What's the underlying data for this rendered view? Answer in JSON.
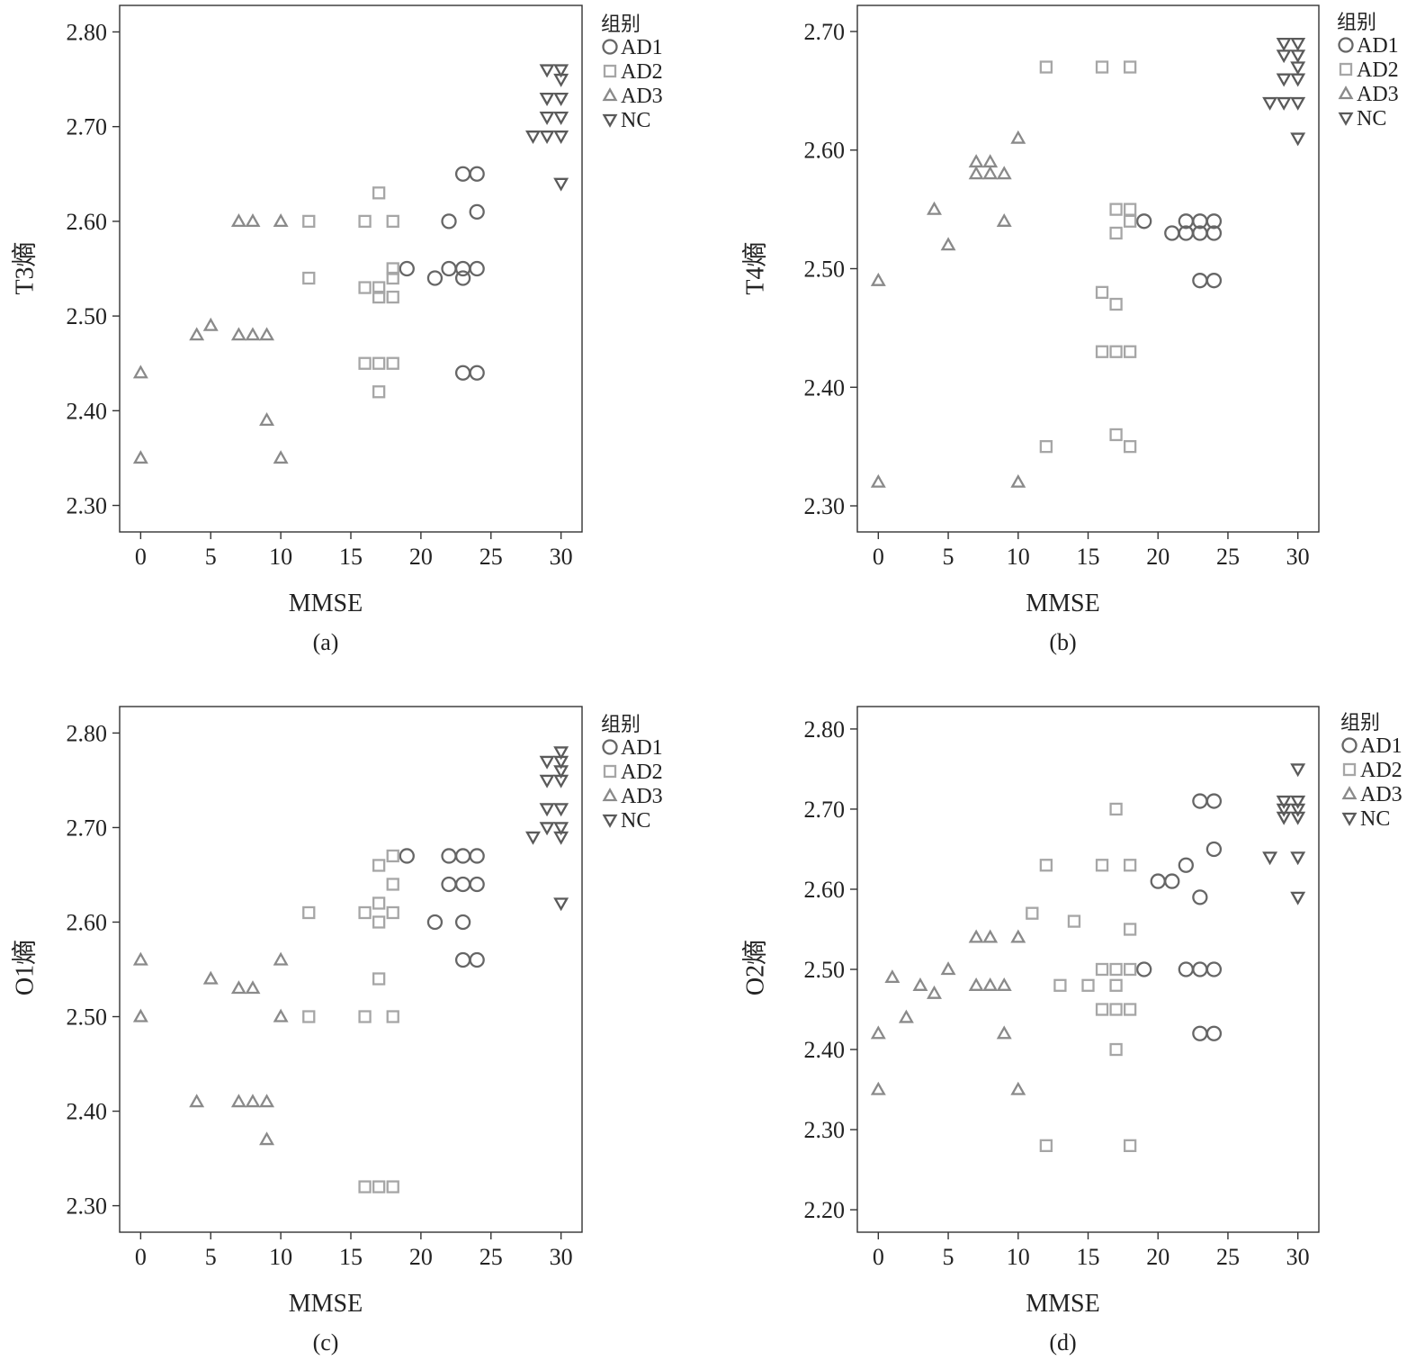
{
  "figure": {
    "legend_title": "组别",
    "groups": [
      {
        "key": "AD1",
        "label": "AD1",
        "symbol": "circle",
        "color": "#666666"
      },
      {
        "key": "AD2",
        "label": "AD2",
        "symbol": "square",
        "color": "#a6a6a6"
      },
      {
        "key": "AD3",
        "label": "AD3",
        "symbol": "triangle-up",
        "color": "#8a8a8a"
      },
      {
        "key": "NC",
        "label": "NC",
        "symbol": "triangle-down",
        "color": "#5a5a5a"
      }
    ]
  },
  "chart_data": [
    {
      "type": "scatter",
      "panel_label": "(a)",
      "xlabel": "MMSE",
      "ylabel": "T3熵",
      "xlim": [
        -1.5,
        31.5
      ],
      "ylim": [
        2.272,
        2.828
      ],
      "xticks": [
        "0",
        "5",
        "10",
        "15",
        "20",
        "25",
        "30"
      ],
      "yticks": [
        "2.30",
        "2.40",
        "2.50",
        "2.60",
        "2.70",
        "2.80"
      ],
      "grid": false,
      "legend_position": "top-right, outside plot",
      "series": [
        {
          "group": "AD1",
          "points": [
            [
              19,
              2.55
            ],
            [
              21,
              2.54
            ],
            [
              22,
              2.6
            ],
            [
              22,
              2.55
            ],
            [
              23,
              2.65
            ],
            [
              23,
              2.55
            ],
            [
              23,
              2.54
            ],
            [
              23,
              2.44
            ],
            [
              24,
              2.65
            ],
            [
              24,
              2.61
            ],
            [
              24,
              2.55
            ],
            [
              24,
              2.44
            ]
          ]
        },
        {
          "group": "AD2",
          "points": [
            [
              12,
              2.6
            ],
            [
              12,
              2.54
            ],
            [
              16,
              2.6
            ],
            [
              16,
              2.53
            ],
            [
              16,
              2.45
            ],
            [
              17,
              2.63
            ],
            [
              17,
              2.53
            ],
            [
              17,
              2.52
            ],
            [
              17,
              2.45
            ],
            [
              17,
              2.42
            ],
            [
              18,
              2.6
            ],
            [
              18,
              2.55
            ],
            [
              18,
              2.54
            ],
            [
              18,
              2.52
            ],
            [
              18,
              2.45
            ]
          ]
        },
        {
          "group": "AD3",
          "points": [
            [
              0,
              2.44
            ],
            [
              0,
              2.35
            ],
            [
              4,
              2.48
            ],
            [
              5,
              2.49
            ],
            [
              7,
              2.6
            ],
            [
              7,
              2.48
            ],
            [
              8,
              2.6
            ],
            [
              8,
              2.48
            ],
            [
              9,
              2.48
            ],
            [
              9,
              2.39
            ],
            [
              10,
              2.6
            ],
            [
              10,
              2.35
            ]
          ]
        },
        {
          "group": "NC",
          "points": [
            [
              28,
              2.69
            ],
            [
              29,
              2.76
            ],
            [
              29,
              2.73
            ],
            [
              29,
              2.71
            ],
            [
              29,
              2.69
            ],
            [
              30,
              2.76
            ],
            [
              30,
              2.75
            ],
            [
              30,
              2.73
            ],
            [
              30,
              2.71
            ],
            [
              30,
              2.69
            ],
            [
              30,
              2.64
            ]
          ]
        }
      ]
    },
    {
      "type": "scatter",
      "panel_label": "(b)",
      "xlabel": "MMSE",
      "ylabel": "T4熵",
      "xlim": [
        -1.5,
        31.5
      ],
      "ylim": [
        2.278,
        2.722
      ],
      "xticks": [
        "0",
        "5",
        "10",
        "15",
        "20",
        "25",
        "30"
      ],
      "yticks": [
        "2.30",
        "2.40",
        "2.50",
        "2.60",
        "2.70"
      ],
      "grid": false,
      "legend_position": "top-right, outside plot",
      "series": [
        {
          "group": "AD1",
          "points": [
            [
              19,
              2.54
            ],
            [
              21,
              2.53
            ],
            [
              22,
              2.54
            ],
            [
              22,
              2.53
            ],
            [
              23,
              2.54
            ],
            [
              23,
              2.53
            ],
            [
              23,
              2.49
            ],
            [
              24,
              2.54
            ],
            [
              24,
              2.53
            ],
            [
              24,
              2.49
            ]
          ]
        },
        {
          "group": "AD2",
          "points": [
            [
              12,
              2.67
            ],
            [
              12,
              2.35
            ],
            [
              16,
              2.67
            ],
            [
              16,
              2.48
            ],
            [
              16,
              2.43
            ],
            [
              17,
              2.55
            ],
            [
              17,
              2.53
            ],
            [
              17,
              2.47
            ],
            [
              17,
              2.43
            ],
            [
              17,
              2.36
            ],
            [
              18,
              2.67
            ],
            [
              18,
              2.55
            ],
            [
              18,
              2.54
            ],
            [
              18,
              2.43
            ],
            [
              18,
              2.35
            ]
          ]
        },
        {
          "group": "AD3",
          "points": [
            [
              0,
              2.49
            ],
            [
              0,
              2.32
            ],
            [
              4,
              2.55
            ],
            [
              5,
              2.52
            ],
            [
              7,
              2.59
            ],
            [
              7,
              2.58
            ],
            [
              8,
              2.59
            ],
            [
              8,
              2.58
            ],
            [
              9,
              2.58
            ],
            [
              9,
              2.54
            ],
            [
              10,
              2.61
            ],
            [
              10,
              2.32
            ]
          ]
        },
        {
          "group": "NC",
          "points": [
            [
              28,
              2.64
            ],
            [
              29,
              2.69
            ],
            [
              29,
              2.68
            ],
            [
              29,
              2.66
            ],
            [
              29,
              2.64
            ],
            [
              30,
              2.69
            ],
            [
              30,
              2.68
            ],
            [
              30,
              2.67
            ],
            [
              30,
              2.66
            ],
            [
              30,
              2.64
            ],
            [
              30,
              2.61
            ]
          ]
        }
      ]
    },
    {
      "type": "scatter",
      "panel_label": "(c)",
      "xlabel": "MMSE",
      "ylabel": "O1熵",
      "xlim": [
        -1.5,
        31.5
      ],
      "ylim": [
        2.272,
        2.828
      ],
      "xticks": [
        "0",
        "5",
        "10",
        "15",
        "20",
        "25",
        "30"
      ],
      "yticks": [
        "2.30",
        "2.40",
        "2.50",
        "2.60",
        "2.70",
        "2.80"
      ],
      "grid": false,
      "legend_position": "top-right, outside plot",
      "series": [
        {
          "group": "AD1",
          "points": [
            [
              19,
              2.67
            ],
            [
              21,
              2.6
            ],
            [
              22,
              2.67
            ],
            [
              22,
              2.64
            ],
            [
              23,
              2.67
            ],
            [
              23,
              2.64
            ],
            [
              23,
              2.6
            ],
            [
              23,
              2.56
            ],
            [
              24,
              2.67
            ],
            [
              24,
              2.64
            ],
            [
              24,
              2.56
            ]
          ]
        },
        {
          "group": "AD2",
          "points": [
            [
              12,
              2.61
            ],
            [
              12,
              2.5
            ],
            [
              16,
              2.61
            ],
            [
              16,
              2.5
            ],
            [
              16,
              2.32
            ],
            [
              17,
              2.66
            ],
            [
              17,
              2.62
            ],
            [
              17,
              2.6
            ],
            [
              17,
              2.54
            ],
            [
              17,
              2.32
            ],
            [
              18,
              2.67
            ],
            [
              18,
              2.64
            ],
            [
              18,
              2.61
            ],
            [
              18,
              2.5
            ],
            [
              18,
              2.32
            ]
          ]
        },
        {
          "group": "AD3",
          "points": [
            [
              0,
              2.56
            ],
            [
              0,
              2.5
            ],
            [
              4,
              2.41
            ],
            [
              5,
              2.54
            ],
            [
              7,
              2.53
            ],
            [
              7,
              2.41
            ],
            [
              8,
              2.53
            ],
            [
              8,
              2.41
            ],
            [
              9,
              2.41
            ],
            [
              9,
              2.37
            ],
            [
              10,
              2.56
            ],
            [
              10,
              2.5
            ]
          ]
        },
        {
          "group": "NC",
          "points": [
            [
              28,
              2.69
            ],
            [
              29,
              2.77
            ],
            [
              29,
              2.75
            ],
            [
              29,
              2.72
            ],
            [
              29,
              2.7
            ],
            [
              30,
              2.78
            ],
            [
              30,
              2.77
            ],
            [
              30,
              2.76
            ],
            [
              30,
              2.75
            ],
            [
              30,
              2.72
            ],
            [
              30,
              2.7
            ],
            [
              30,
              2.69
            ],
            [
              30,
              2.62
            ]
          ]
        }
      ]
    },
    {
      "type": "scatter",
      "panel_label": "(d)",
      "xlabel": "MMSE",
      "ylabel": "O2熵",
      "xlim": [
        -1.5,
        31.5
      ],
      "ylim": [
        2.172,
        2.828
      ],
      "xticks": [
        "0",
        "5",
        "10",
        "15",
        "20",
        "25",
        "30"
      ],
      "yticks": [
        "2.20",
        "2.30",
        "2.40",
        "2.50",
        "2.60",
        "2.70",
        "2.80"
      ],
      "grid": false,
      "legend_position": "top-right, outside plot",
      "series": [
        {
          "group": "AD1",
          "points": [
            [
              19,
              2.5
            ],
            [
              20,
              2.61
            ],
            [
              21,
              2.61
            ],
            [
              22,
              2.63
            ],
            [
              22,
              2.5
            ],
            [
              23,
              2.71
            ],
            [
              23,
              2.59
            ],
            [
              23,
              2.5
            ],
            [
              23,
              2.42
            ],
            [
              24,
              2.71
            ],
            [
              24,
              2.65
            ],
            [
              24,
              2.5
            ],
            [
              24,
              2.42
            ]
          ]
        },
        {
          "group": "AD2",
          "points": [
            [
              11,
              2.57
            ],
            [
              12,
              2.63
            ],
            [
              12,
              2.28
            ],
            [
              13,
              2.48
            ],
            [
              14,
              2.56
            ],
            [
              15,
              2.48
            ],
            [
              16,
              2.63
            ],
            [
              16,
              2.5
            ],
            [
              16,
              2.45
            ],
            [
              17,
              2.7
            ],
            [
              17,
              2.5
            ],
            [
              17,
              2.48
            ],
            [
              17,
              2.45
            ],
            [
              17,
              2.4
            ],
            [
              18,
              2.63
            ],
            [
              18,
              2.55
            ],
            [
              18,
              2.5
            ],
            [
              18,
              2.45
            ],
            [
              18,
              2.28
            ]
          ]
        },
        {
          "group": "AD3",
          "points": [
            [
              0,
              2.42
            ],
            [
              0,
              2.35
            ],
            [
              1,
              2.49
            ],
            [
              2,
              2.44
            ],
            [
              3,
              2.48
            ],
            [
              4,
              2.47
            ],
            [
              5,
              2.5
            ],
            [
              7,
              2.54
            ],
            [
              7,
              2.48
            ],
            [
              8,
              2.54
            ],
            [
              8,
              2.48
            ],
            [
              9,
              2.48
            ],
            [
              9,
              2.42
            ],
            [
              10,
              2.54
            ],
            [
              10,
              2.35
            ]
          ]
        },
        {
          "group": "NC",
          "points": [
            [
              28,
              2.64
            ],
            [
              29,
              2.71
            ],
            [
              29,
              2.7
            ],
            [
              29,
              2.69
            ],
            [
              30,
              2.75
            ],
            [
              30,
              2.71
            ],
            [
              30,
              2.7
            ],
            [
              30,
              2.69
            ],
            [
              30,
              2.64
            ],
            [
              30,
              2.59
            ]
          ]
        }
      ]
    }
  ]
}
